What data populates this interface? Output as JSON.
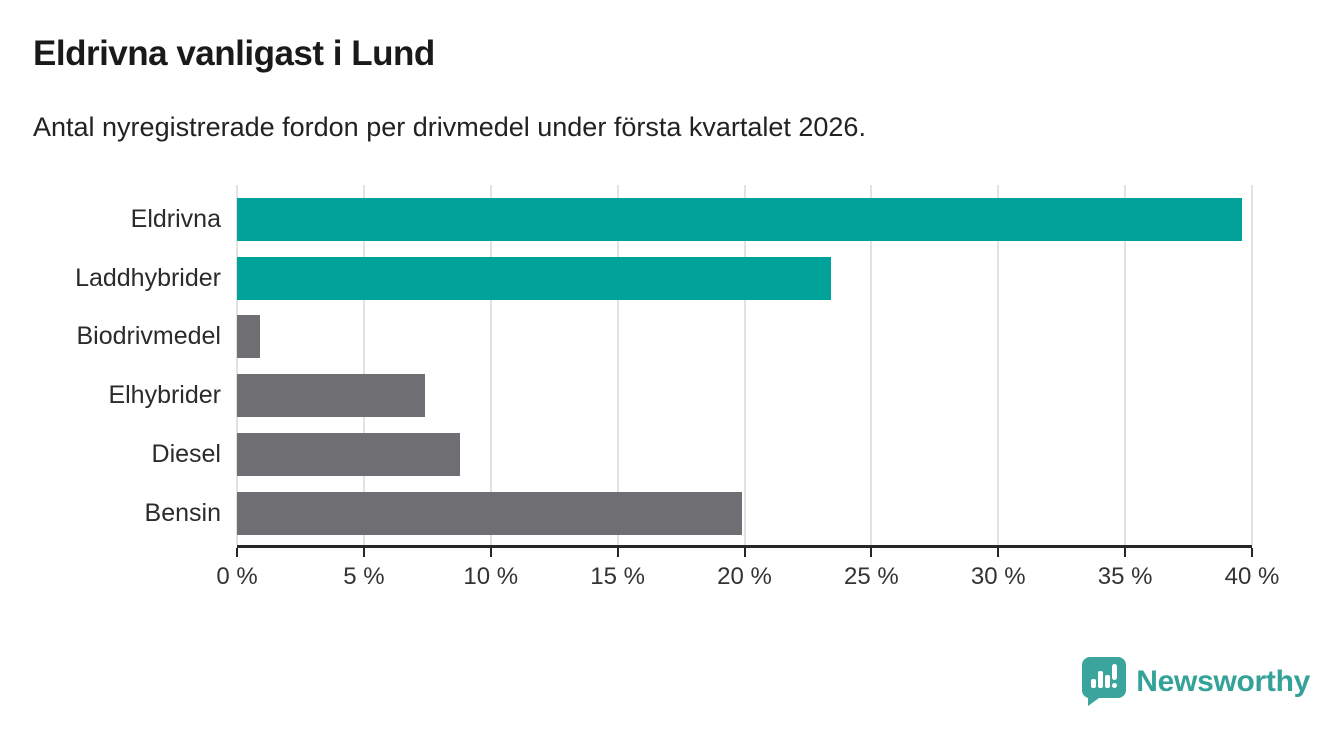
{
  "header": {
    "title": "Eldrivna vanligast i Lund",
    "subtitle": "Antal nyregistrerade fordon per drivmedel under första kvartalet 2026."
  },
  "chart_data": {
    "type": "bar",
    "orientation": "horizontal",
    "title": "Eldrivna vanligast i Lund",
    "subtitle": "Antal nyregistrerade fordon per drivmedel under första kvartalet 2026.",
    "categories": [
      "Eldrivna",
      "Laddhybrider",
      "Biodrivmedel",
      "Elhybrider",
      "Diesel",
      "Bensin"
    ],
    "values": [
      39.6,
      23.4,
      0.9,
      7.4,
      8.8,
      19.9
    ],
    "unit": "%",
    "xlim": [
      0,
      40
    ],
    "x_tick_step": 5,
    "x_tick_labels": [
      "0 %",
      "5 %",
      "10 %",
      "15 %",
      "20 %",
      "25 %",
      "30 %",
      "35 %",
      "40 %"
    ],
    "grid": true,
    "legend": "none",
    "bar_colors": [
      "#00A29A",
      "#00A29A",
      "#6E6E73",
      "#6E6E73",
      "#6E6E73",
      "#6E6E73"
    ]
  },
  "colors": {
    "highlight_teal": "#00A29A",
    "neutral_gray": "#6E6E73",
    "gridline": "#E2E2E2",
    "axis": "#262626",
    "title_text": "#1A1A1A",
    "brand_teal": "#35A29A"
  },
  "footer": {
    "brand": "Newsworthy"
  }
}
